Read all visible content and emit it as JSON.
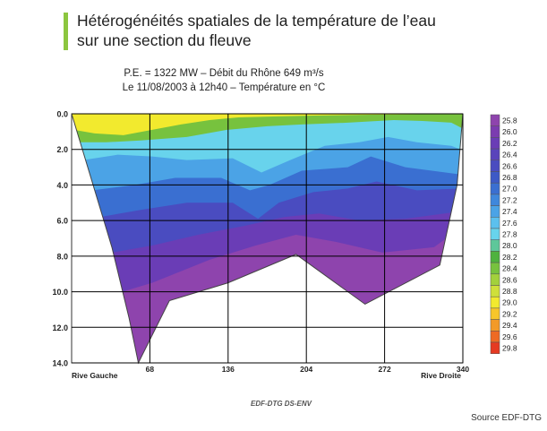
{
  "heading": {
    "line1": "Hétérogénéités spatiales de la température de l’eau",
    "line2": "sur une section du fleuve"
  },
  "subtitle": {
    "line1": "P.E. = 1322 MW – Débit du Rhône 649 m³/s",
    "line2": "Le 11/08/2003 à 12h40 – Température en °C"
  },
  "credit": "EDF-DTG DS-ENV",
  "source": "Source EDF-DTG",
  "chart_data": {
    "type": "heatmap",
    "title": "Température en °C",
    "x_axis": {
      "range": [
        0,
        340
      ],
      "ticks": [
        68,
        136,
        204,
        272,
        340
      ],
      "left_label": "Rive Gauche",
      "right_label": "Rive Droite"
    },
    "y_axis": {
      "range": [
        0,
        14
      ],
      "inverted": true,
      "ticks": [
        "0.0",
        "2.0",
        "4.0",
        "6.0",
        "8.0",
        "10.0",
        "12.0",
        "14.0"
      ]
    },
    "grid": true,
    "legend_position": "right",
    "legend": [
      {
        "value": "25.8",
        "color": "#8e44ad"
      },
      {
        "value": "26.0",
        "color": "#7b3cb0"
      },
      {
        "value": "26.2",
        "color": "#6a3db6"
      },
      {
        "value": "26.4",
        "color": "#5a43bb"
      },
      {
        "value": "26.6",
        "color": "#4a4cc0"
      },
      {
        "value": "26.8",
        "color": "#3d5ac6"
      },
      {
        "value": "27.0",
        "color": "#3a6fd1"
      },
      {
        "value": "27.2",
        "color": "#3f87dc"
      },
      {
        "value": "27.4",
        "color": "#4ba3e6"
      },
      {
        "value": "27.6",
        "color": "#5cc0ee"
      },
      {
        "value": "27.8",
        "color": "#68d3ec"
      },
      {
        "value": "28.0",
        "color": "#5ec79a"
      },
      {
        "value": "28.2",
        "color": "#4fb23e"
      },
      {
        "value": "28.4",
        "color": "#77c23e"
      },
      {
        "value": "28.6",
        "color": "#a2d13c"
      },
      {
        "value": "28.8",
        "color": "#cfe03a"
      },
      {
        "value": "29.0",
        "color": "#f2ea2e"
      },
      {
        "value": "29.2",
        "color": "#f7c62a"
      },
      {
        "value": "29.4",
        "color": "#f39a27"
      },
      {
        "value": "29.6",
        "color": "#ee6a24"
      },
      {
        "value": "29.8",
        "color": "#e53a22"
      }
    ],
    "bed_profile": [
      {
        "x": 0,
        "depth": 0
      },
      {
        "x": 35,
        "depth": 7.5
      },
      {
        "x": 50,
        "depth": 11.5
      },
      {
        "x": 58,
        "depth": 14
      },
      {
        "x": 85,
        "depth": 10.5
      },
      {
        "x": 136,
        "depth": 9.5
      },
      {
        "x": 195,
        "depth": 7.9
      },
      {
        "x": 255,
        "depth": 10.7
      },
      {
        "x": 320,
        "depth": 8.5
      },
      {
        "x": 335,
        "depth": 4
      },
      {
        "x": 340,
        "depth": 0
      }
    ],
    "layers": [
      {
        "temp": "25.8",
        "profile": [
          [
            0,
            14
          ],
          [
            58,
            14
          ],
          [
            340,
            14
          ]
        ]
      },
      {
        "temp": "26.2",
        "profile": [
          [
            44,
            10
          ],
          [
            70,
            9.5
          ],
          [
            120,
            8.2
          ],
          [
            160,
            7.4
          ],
          [
            195,
            6.8
          ],
          [
            230,
            7.2
          ],
          [
            270,
            7.8
          ],
          [
            315,
            7.5
          ],
          [
            336,
            6.5
          ]
        ]
      },
      {
        "temp": "26.6",
        "profile": [
          [
            35,
            7.8
          ],
          [
            70,
            7.4
          ],
          [
            110,
            6.8
          ],
          [
            150,
            6.3
          ],
          [
            185,
            5.8
          ],
          [
            215,
            5.6
          ],
          [
            250,
            6.0
          ],
          [
            290,
            5.9
          ],
          [
            336,
            5.5
          ]
        ]
      },
      {
        "temp": "27.0",
        "profile": [
          [
            25,
            5.8
          ],
          [
            60,
            5.4
          ],
          [
            100,
            5.0
          ],
          [
            140,
            5.0
          ],
          [
            162,
            5.9
          ],
          [
            180,
            5.0
          ],
          [
            210,
            4.4
          ],
          [
            240,
            4.2
          ],
          [
            265,
            3.8
          ],
          [
            300,
            4.3
          ],
          [
            337,
            4.2
          ]
        ]
      },
      {
        "temp": "27.4",
        "profile": [
          [
            18,
            4.3
          ],
          [
            55,
            4.0
          ],
          [
            90,
            3.6
          ],
          [
            130,
            3.6
          ],
          [
            155,
            4.3
          ],
          [
            172,
            4.0
          ],
          [
            200,
            3.2
          ],
          [
            240,
            3.0
          ],
          [
            260,
            2.4
          ],
          [
            290,
            3.0
          ],
          [
            337,
            3.4
          ]
        ]
      },
      {
        "temp": "27.8",
        "profile": [
          [
            10,
            2.6
          ],
          [
            40,
            2.3
          ],
          [
            70,
            2.4
          ],
          [
            100,
            2.6
          ],
          [
            140,
            2.5
          ],
          [
            165,
            3.3
          ],
          [
            190,
            2.6
          ],
          [
            220,
            1.8
          ],
          [
            250,
            1.6
          ],
          [
            275,
            1.3
          ],
          [
            300,
            1.6
          ],
          [
            330,
            1.8
          ],
          [
            338,
            2.0
          ]
        ]
      },
      {
        "temp": "28.4",
        "profile": [
          [
            5,
            1.6
          ],
          [
            30,
            1.6
          ],
          [
            60,
            1.5
          ],
          [
            100,
            1.3
          ],
          [
            135,
            0.9
          ],
          [
            170,
            0.7
          ],
          [
            200,
            0.6
          ],
          [
            240,
            0.5
          ],
          [
            280,
            0.35
          ],
          [
            305,
            0.4
          ],
          [
            330,
            0.5
          ],
          [
            339,
            0.8
          ]
        ]
      },
      {
        "temp": "29.0",
        "profile": [
          [
            2,
            0.9
          ],
          [
            20,
            1.1
          ],
          [
            45,
            1.2
          ],
          [
            70,
            0.9
          ],
          [
            95,
            0.6
          ],
          [
            120,
            0.35
          ],
          [
            145,
            0.2
          ],
          [
            175,
            0.15
          ],
          [
            210,
            0.1
          ],
          [
            260,
            0.05
          ],
          [
            340,
            0
          ]
        ]
      }
    ]
  }
}
